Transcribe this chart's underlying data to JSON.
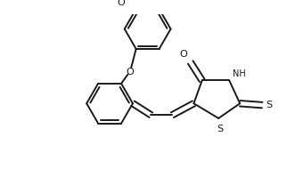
{
  "background": "#ffffff",
  "line_color": "#1a1a1a",
  "lw": 1.4,
  "figsize": [
    3.22,
    2.18
  ],
  "dpi": 100,
  "xlim": [
    0,
    322
  ],
  "ylim": [
    0,
    218
  ]
}
